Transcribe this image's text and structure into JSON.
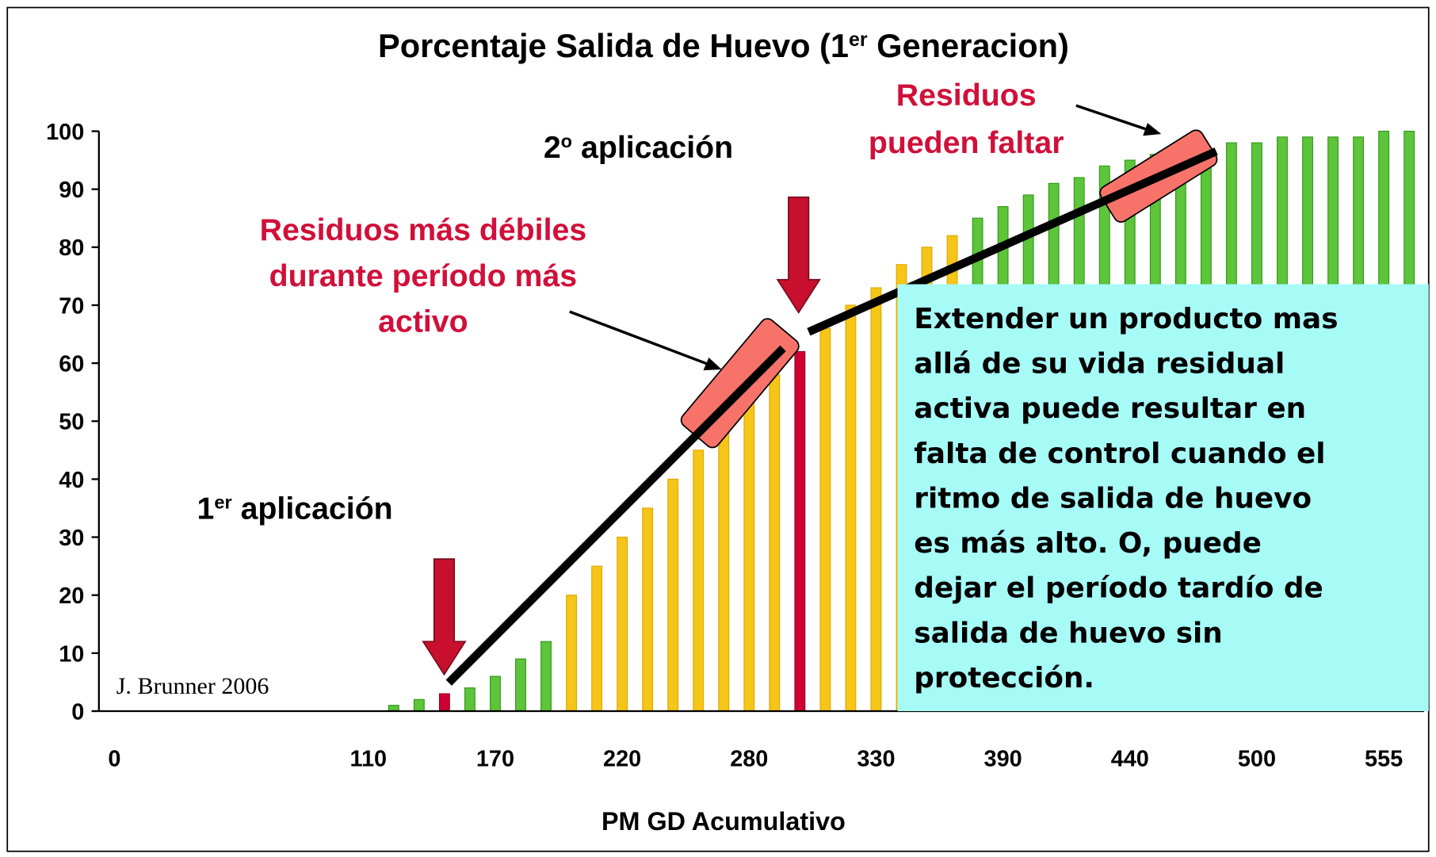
{
  "chart_data": {
    "type": "bar",
    "title": [
      "Porcentaje Salida de Huevo (1",
      "er",
      " Generacion)"
    ],
    "x_label": "PM GD Acumulativo",
    "categories": [
      "0",
      null,
      null,
      null,
      null,
      null,
      null,
      null,
      null,
      null,
      "110",
      null,
      null,
      null,
      null,
      "170",
      null,
      null,
      null,
      null,
      "220",
      null,
      null,
      null,
      null,
      "280",
      null,
      null,
      null,
      null,
      "330",
      null,
      null,
      null,
      null,
      "390",
      null,
      null,
      null,
      null,
      "440",
      null,
      null,
      null,
      null,
      "500",
      null,
      null,
      null,
      null,
      "555",
      null
    ],
    "values": [
      0,
      0,
      0,
      0,
      0,
      0,
      0,
      0,
      0,
      0,
      0,
      1,
      2,
      3,
      4,
      6,
      9,
      12,
      20,
      25,
      30,
      35,
      40,
      45,
      49,
      54,
      58,
      62,
      66,
      70,
      73,
      77,
      80,
      82,
      85,
      87,
      89,
      91,
      92,
      94,
      95,
      96,
      97,
      97,
      98,
      98,
      99,
      99,
      99,
      99,
      100,
      100
    ],
    "colors": [
      "#5ec43a",
      "#5ec43a",
      "#5ec43a",
      "#5ec43a",
      "#5ec43a",
      "#5ec43a",
      "#5ec43a",
      "#5ec43a",
      "#5ec43a",
      "#5ec43a",
      "#5ec43a",
      "#5ec43a",
      "#5ec43a",
      "#cc0033",
      "#5ec43a",
      "#5ec43a",
      "#5ec43a",
      "#5ec43a",
      "#f5c518",
      "#f5c518",
      "#f5c518",
      "#f5c518",
      "#f5c518",
      "#f5c518",
      "#f5c518",
      "#f5c518",
      "#f5c518",
      "#cc0033",
      "#f5c518",
      "#f5c518",
      "#f5c518",
      "#f5c518",
      "#f5c518",
      "#f5c518",
      "#5ec43a",
      "#5ec43a",
      "#5ec43a",
      "#5ec43a",
      "#5ec43a",
      "#5ec43a",
      "#5ec43a",
      "#5ec43a",
      "#5ec43a",
      "#5ec43a",
      "#5ec43a",
      "#5ec43a",
      "#5ec43a",
      "#5ec43a",
      "#5ec43a",
      "#5ec43a",
      "#5ec43a",
      "#5ec43a"
    ],
    "ylim": [
      0,
      100
    ],
    "yticks": [
      0,
      10,
      20,
      30,
      40,
      50,
      60,
      70,
      80,
      90,
      100
    ],
    "labels": [
      {
        "parts": [
          "1",
          "er",
          " aplicación"
        ]
      },
      {
        "parts": [
          "2",
          "o",
          " aplicación"
        ]
      }
    ],
    "callouts": [
      {
        "lines": [
          "Residuos más débiles",
          "durante período más",
          "activo"
        ]
      },
      {
        "lines": [
          "Residuos",
          "pueden faltar"
        ]
      }
    ],
    "note": {
      "lines": [
        "Extender un producto mas",
        "allá de su vida residual",
        "activa puede resultar en",
        "falta de control cuando el",
        "ritmo de salida de huevo",
        "es más alto.  O, puede",
        "dejar el período tardío de",
        "salida de huevo sin",
        "protección."
      ]
    },
    "credit": "J. Brunner 2006"
  }
}
